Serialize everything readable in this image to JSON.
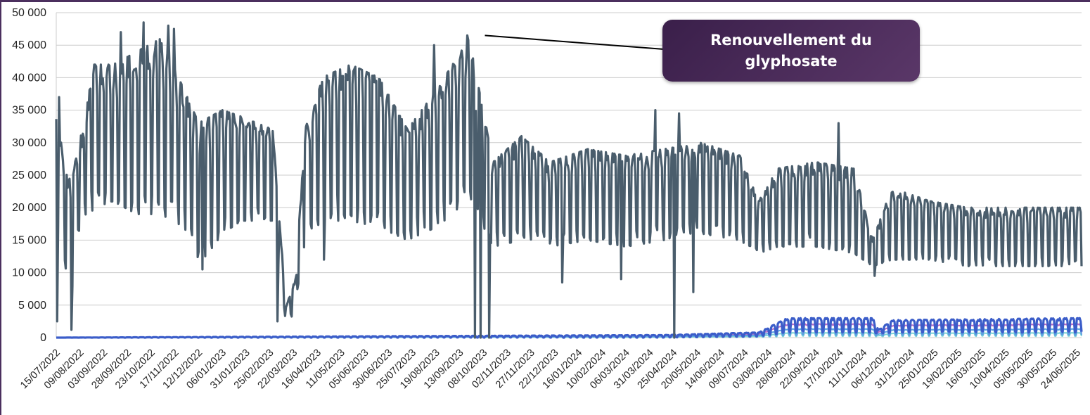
{
  "colors": {
    "main_series": "#4a5d6c",
    "flat_series": "#3b5dc9",
    "callout_bg": "#4b2f5e",
    "callout_text": "#ffffff",
    "grid": "#cccccc",
    "frame": "#4b2f5e"
  },
  "chart_data": {
    "type": "line",
    "title": "",
    "xlabel": "",
    "ylabel": "",
    "ylim": [
      0,
      50000
    ],
    "grid": "horizontal",
    "legend": "none",
    "y_ticks": [
      "0",
      "5 000",
      "10 000",
      "15 000",
      "20 000",
      "25 000",
      "30 000",
      "35 000",
      "40 000",
      "45 000",
      "50 000"
    ],
    "x_tick_labels": [
      "15/07/2022",
      "09/08/2022",
      "03/09/2022",
      "28/09/2022",
      "23/10/2022",
      "17/11/2022",
      "12/12/2022",
      "06/01/2023",
      "31/01/2023",
      "25/02/2023",
      "22/03/2023",
      "16/04/2023",
      "11/05/2023",
      "05/06/2023",
      "30/06/2023",
      "25/07/2023",
      "19/08/2023",
      "13/09/2023",
      "08/10/2023",
      "02/11/2023",
      "27/11/2023",
      "22/12/2023",
      "16/01/2024",
      "10/02/2024",
      "06/03/2024",
      "31/03/2024",
      "25/04/2024",
      "20/05/2024",
      "14/06/2024",
      "09/07/2024",
      "03/08/2024",
      "28/08/2024",
      "22/09/2024",
      "17/10/2024",
      "11/11/2024",
      "06/12/2024",
      "31/12/2024",
      "25/01/2025",
      "19/02/2025",
      "16/03/2025",
      "10/04/2025",
      "05/05/2025",
      "30/05/2025",
      "24/06/2025"
    ],
    "series_profile": [
      {
        "x": 0,
        "low": 17000,
        "high": 36000
      },
      {
        "x": 6,
        "low": 18000,
        "high": 29000
      },
      {
        "x": 13,
        "low": 1500,
        "high": 24000
      },
      {
        "x": 22,
        "low": 16000,
        "high": 28000
      },
      {
        "x": 40,
        "low": 20000,
        "high": 42000
      },
      {
        "x": 60,
        "low": 21000,
        "high": 42000
      },
      {
        "x": 85,
        "low": 19000,
        "high": 44000
      },
      {
        "x": 110,
        "low": 19000,
        "high": 46000
      },
      {
        "x": 135,
        "low": 17000,
        "high": 38000
      },
      {
        "x": 150,
        "low": 11000,
        "high": 33000
      },
      {
        "x": 175,
        "low": 16000,
        "high": 35000
      },
      {
        "x": 195,
        "low": 18000,
        "high": 34000
      },
      {
        "x": 228,
        "low": 18000,
        "high": 32000
      },
      {
        "x": 242,
        "low": 2000,
        "high": 5000
      },
      {
        "x": 252,
        "low": 4000,
        "high": 9000
      },
      {
        "x": 262,
        "low": 15000,
        "high": 32000
      },
      {
        "x": 280,
        "low": 18000,
        "high": 40000
      },
      {
        "x": 310,
        "low": 18000,
        "high": 42000
      },
      {
        "x": 340,
        "low": 17000,
        "high": 40000
      },
      {
        "x": 370,
        "low": 15000,
        "high": 32000
      },
      {
        "x": 400,
        "low": 17000,
        "high": 38000
      },
      {
        "x": 435,
        "low": 21000,
        "high": 46000
      },
      {
        "x": 460,
        "low": 14000,
        "high": 27000
      },
      {
        "x": 490,
        "low": 15000,
        "high": 31000
      },
      {
        "x": 520,
        "low": 14000,
        "high": 27000
      },
      {
        "x": 560,
        "low": 15000,
        "high": 29000
      },
      {
        "x": 600,
        "low": 14000,
        "high": 28000
      },
      {
        "x": 640,
        "low": 15000,
        "high": 29000
      },
      {
        "x": 680,
        "low": 16000,
        "high": 30000
      },
      {
        "x": 720,
        "low": 15000,
        "high": 28000
      },
      {
        "x": 740,
        "low": 13000,
        "high": 21000
      },
      {
        "x": 760,
        "low": 14000,
        "high": 26000
      },
      {
        "x": 800,
        "low": 14000,
        "high": 27000
      },
      {
        "x": 840,
        "low": 13000,
        "high": 26000
      },
      {
        "x": 860,
        "low": 11000,
        "high": 15000
      },
      {
        "x": 880,
        "low": 12000,
        "high": 23000
      },
      {
        "x": 920,
        "low": 12000,
        "high": 21000
      },
      {
        "x": 960,
        "low": 11000,
        "high": 20000
      },
      {
        "x": 1000,
        "low": 11000,
        "high": 20000
      },
      {
        "x": 1080,
        "low": 11000,
        "high": 20000
      }
    ],
    "series_events": [
      {
        "x": 1,
        "value": 2500
      },
      {
        "x": 3,
        "value": 37000
      },
      {
        "x": 16,
        "value": 1200
      },
      {
        "x": 68,
        "value": 47000
      },
      {
        "x": 92,
        "value": 48500
      },
      {
        "x": 118,
        "value": 48000
      },
      {
        "x": 124,
        "value": 47500
      },
      {
        "x": 154,
        "value": 10500
      },
      {
        "x": 233,
        "value": 2500
      },
      {
        "x": 262,
        "value": 30000
      },
      {
        "x": 282,
        "value": 12000
      },
      {
        "x": 398,
        "value": 45000
      },
      {
        "x": 428,
        "value": 43000
      },
      {
        "x": 433,
        "value": 46500
      },
      {
        "x": 441,
        "value": 0
      },
      {
        "x": 447,
        "value": 0
      },
      {
        "x": 456,
        "value": 0
      },
      {
        "x": 533,
        "value": 8500
      },
      {
        "x": 595,
        "value": 9000
      },
      {
        "x": 631,
        "value": 35000
      },
      {
        "x": 651,
        "value": 0
      },
      {
        "x": 656,
        "value": 34500
      },
      {
        "x": 671,
        "value": 7000
      },
      {
        "x": 824,
        "value": 33000
      },
      {
        "x": 862,
        "value": 9500
      }
    ],
    "secondary_series_profile": [
      {
        "x": 0,
        "low": 0,
        "high": 0
      },
      {
        "x": 640,
        "low": 0,
        "high": 400
      },
      {
        "x": 740,
        "low": 200,
        "high": 800
      },
      {
        "x": 770,
        "low": 800,
        "high": 3000
      },
      {
        "x": 860,
        "low": 800,
        "high": 3000
      },
      {
        "x": 866,
        "low": 600,
        "high": 1200
      },
      {
        "x": 880,
        "low": 800,
        "high": 2700
      },
      {
        "x": 1080,
        "low": 800,
        "high": 3000
      }
    ],
    "annotation": {
      "text": "Renouvellement du glyphosate",
      "x": 450,
      "y": 46500
    }
  }
}
